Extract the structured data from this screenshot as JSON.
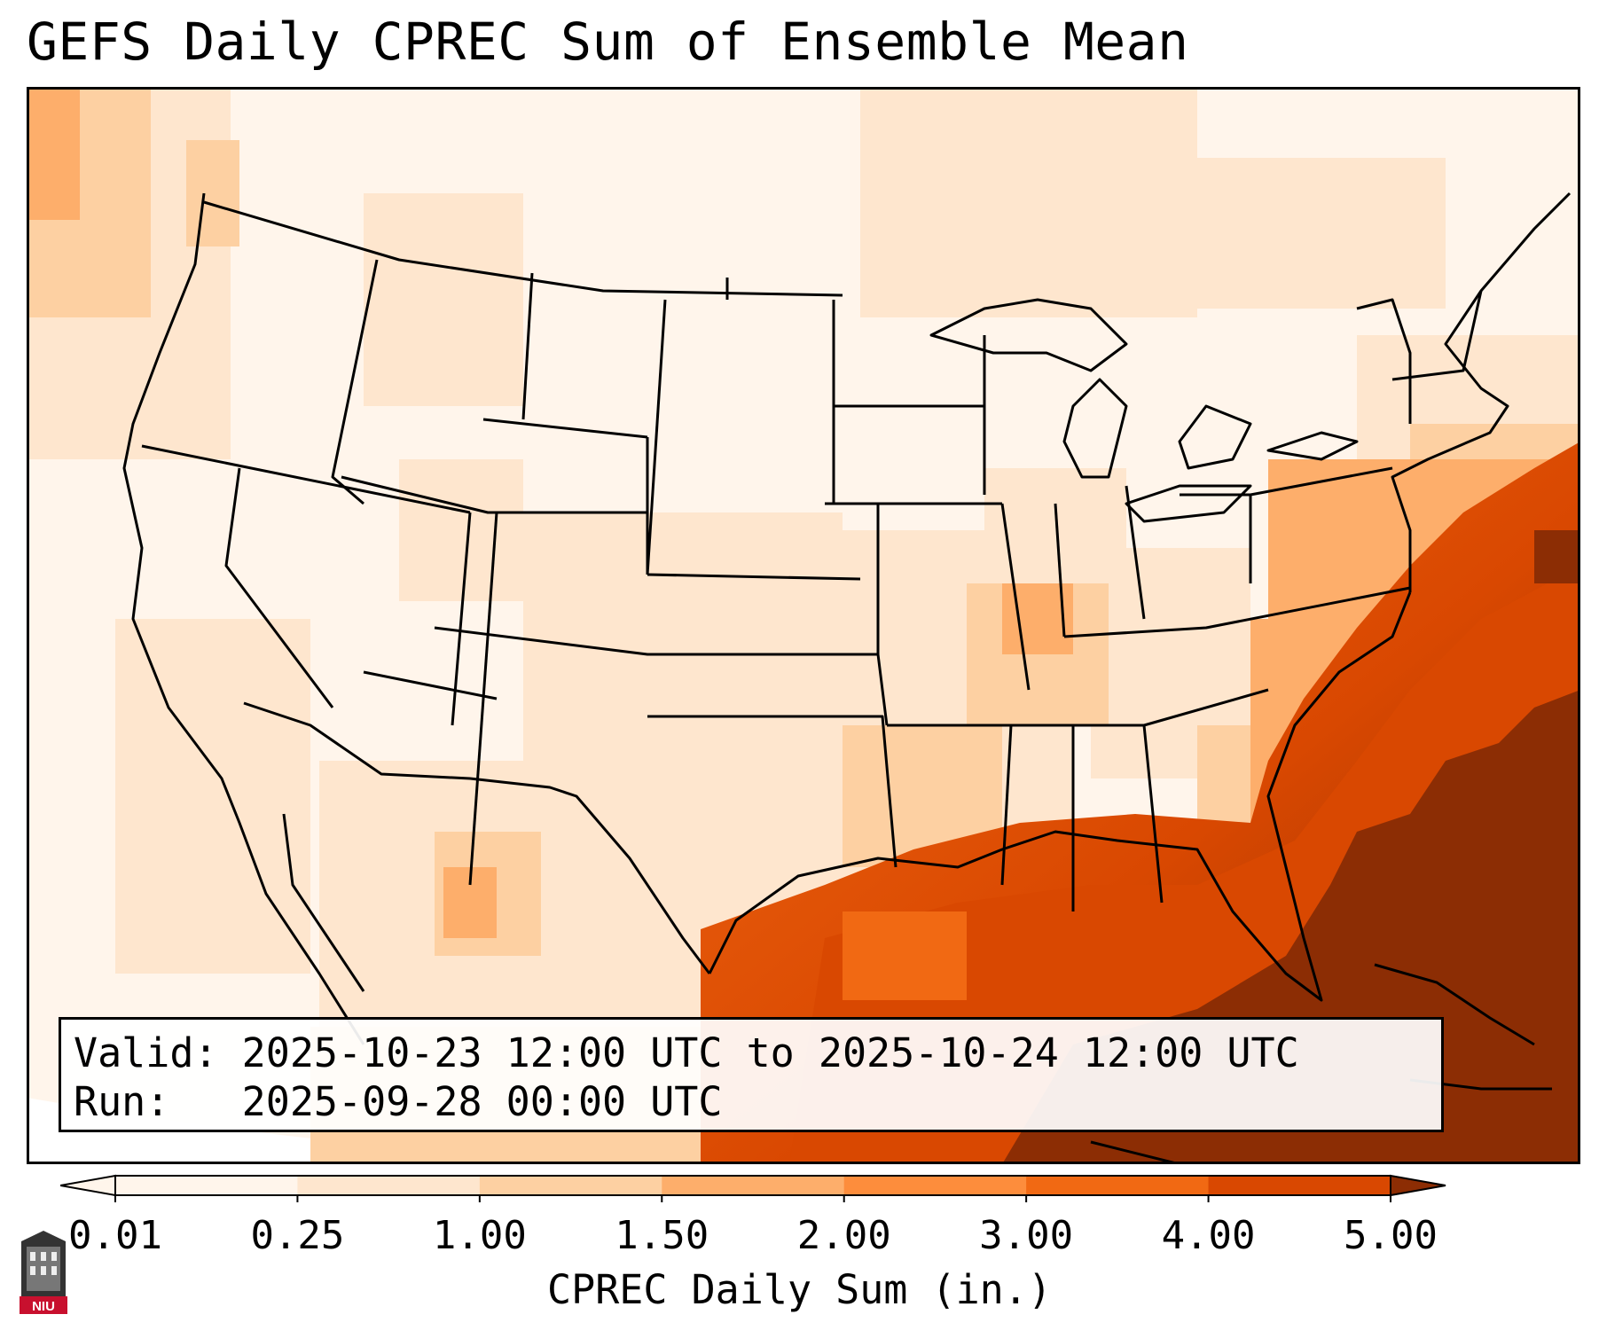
{
  "title": "GEFS Daily CPREC Sum of Ensemble Mean",
  "info": {
    "valid_line": "Valid: 2025-10-23 12:00 UTC to 2025-10-24 12:00 UTC",
    "run_line": "Run:   2025-09-28 00:00 UTC"
  },
  "colorbar": {
    "label": "CPREC Daily Sum (in.)",
    "ticks": [
      "0.01",
      "0.25",
      "1.00",
      "1.50",
      "2.00",
      "3.00",
      "4.00",
      "5.00"
    ],
    "colors": [
      "#fff5eb",
      "#fee6ce",
      "#fdd0a2",
      "#fdae6b",
      "#fd8d3c",
      "#f16913",
      "#d94801",
      "#8c2d04"
    ]
  },
  "logo": {
    "text": "NIU"
  }
}
